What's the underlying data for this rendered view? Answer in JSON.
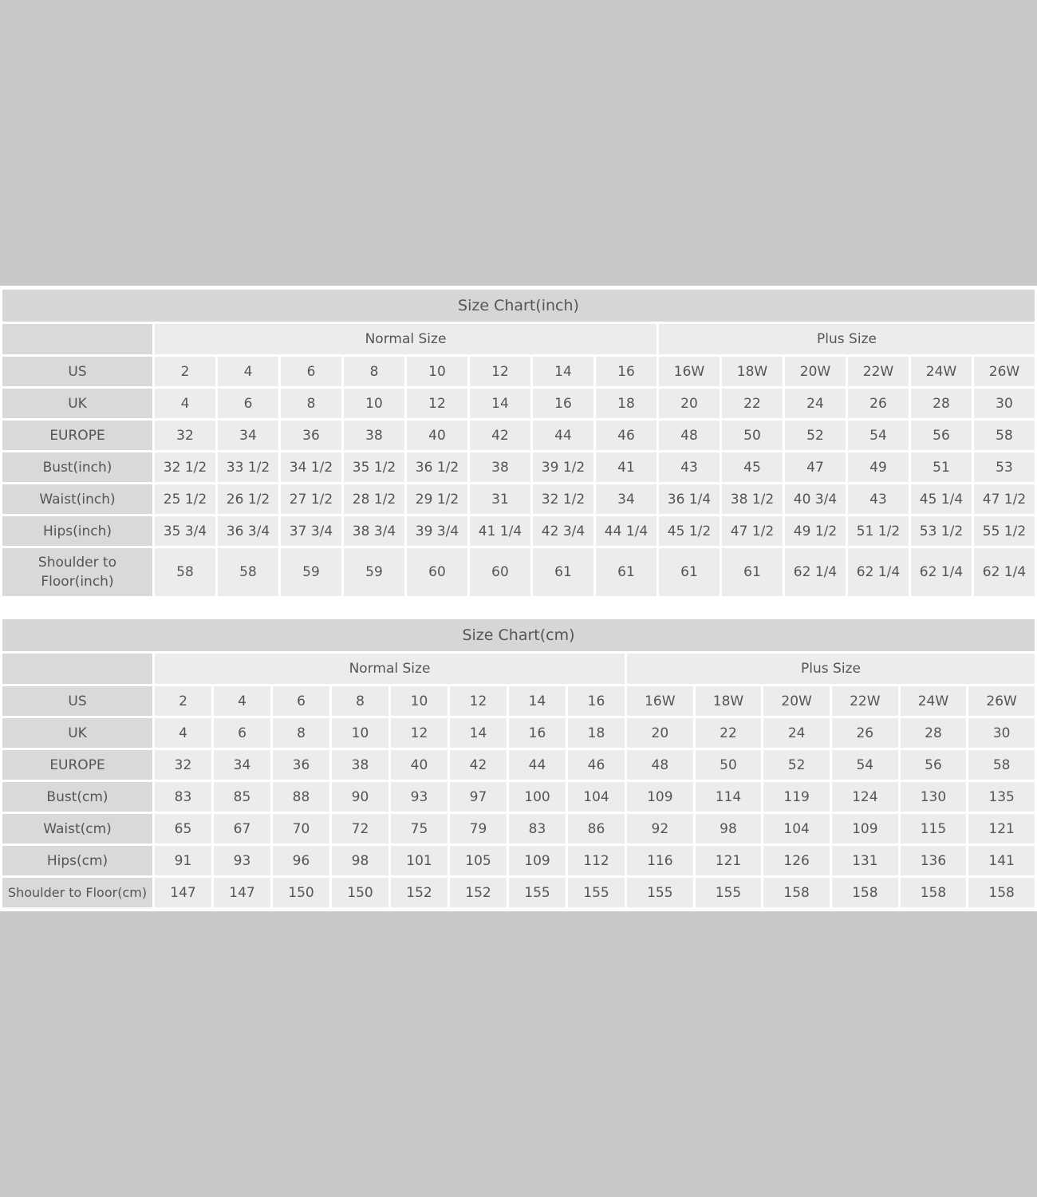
{
  "inch_chart": {
    "title": "Size Chart(inch)",
    "groups": {
      "normal": "Normal Size",
      "plus": "Plus Size"
    },
    "rows": [
      {
        "label": "US",
        "values": [
          "2",
          "4",
          "6",
          "8",
          "10",
          "12",
          "14",
          "16",
          "16W",
          "18W",
          "20W",
          "22W",
          "24W",
          "26W"
        ]
      },
      {
        "label": "UK",
        "values": [
          "4",
          "6",
          "8",
          "10",
          "12",
          "14",
          "16",
          "18",
          "20",
          "22",
          "24",
          "26",
          "28",
          "30"
        ]
      },
      {
        "label": "EUROPE",
        "values": [
          "32",
          "34",
          "36",
          "38",
          "40",
          "42",
          "44",
          "46",
          "48",
          "50",
          "52",
          "54",
          "56",
          "58"
        ]
      },
      {
        "label": "Bust(inch)",
        "values": [
          "32 1/2",
          "33 1/2",
          "34 1/2",
          "35 1/2",
          "36 1/2",
          "38",
          "39 1/2",
          "41",
          "43",
          "45",
          "47",
          "49",
          "51",
          "53"
        ]
      },
      {
        "label": "Waist(inch)",
        "values": [
          "25 1/2",
          "26 1/2",
          "27 1/2",
          "28 1/2",
          "29 1/2",
          "31",
          "32 1/2",
          "34",
          "36 1/4",
          "38 1/2",
          "40 3/4",
          "43",
          "45 1/4",
          "47 1/2"
        ]
      },
      {
        "label": "Hips(inch)",
        "values": [
          "35 3/4",
          "36 3/4",
          "37 3/4",
          "38 3/4",
          "39 3/4",
          "41 1/4",
          "42 3/4",
          "44 1/4",
          "45 1/2",
          "47 1/2",
          "49 1/2",
          "51 1/2",
          "53 1/2",
          "55 1/2"
        ]
      },
      {
        "label": "Shoulder to Floor(inch)",
        "values": [
          "58",
          "58",
          "59",
          "59",
          "60",
          "60",
          "61",
          "61",
          "61",
          "61",
          "62 1/4",
          "62 1/4",
          "62 1/4",
          "62 1/4"
        ]
      }
    ]
  },
  "cm_chart": {
    "title": "Size Chart(cm)",
    "groups": {
      "normal": "Normal Size",
      "plus": "Plus Size"
    },
    "rows": [
      {
        "label": "US",
        "values": [
          "2",
          "4",
          "6",
          "8",
          "10",
          "12",
          "14",
          "16",
          "16W",
          "18W",
          "20W",
          "22W",
          "24W",
          "26W"
        ]
      },
      {
        "label": "UK",
        "values": [
          "4",
          "6",
          "8",
          "10",
          "12",
          "14",
          "16",
          "18",
          "20",
          "22",
          "24",
          "26",
          "28",
          "30"
        ]
      },
      {
        "label": "EUROPE",
        "values": [
          "32",
          "34",
          "36",
          "38",
          "40",
          "42",
          "44",
          "46",
          "48",
          "50",
          "52",
          "54",
          "56",
          "58"
        ]
      },
      {
        "label": "Bust(cm)",
        "values": [
          "83",
          "85",
          "88",
          "90",
          "93",
          "97",
          "100",
          "104",
          "109",
          "114",
          "119",
          "124",
          "130",
          "135"
        ]
      },
      {
        "label": "Waist(cm)",
        "values": [
          "65",
          "67",
          "70",
          "72",
          "75",
          "79",
          "83",
          "86",
          "92",
          "98",
          "104",
          "109",
          "115",
          "121"
        ]
      },
      {
        "label": "Hips(cm)",
        "values": [
          "91",
          "93",
          "96",
          "98",
          "101",
          "105",
          "109",
          "112",
          "116",
          "121",
          "126",
          "131",
          "136",
          "141"
        ]
      },
      {
        "label": "Shoulder to Floor(cm)",
        "values": [
          "147",
          "147",
          "150",
          "150",
          "152",
          "152",
          "155",
          "155",
          "155",
          "155",
          "158",
          "158",
          "158",
          "158"
        ]
      }
    ]
  }
}
